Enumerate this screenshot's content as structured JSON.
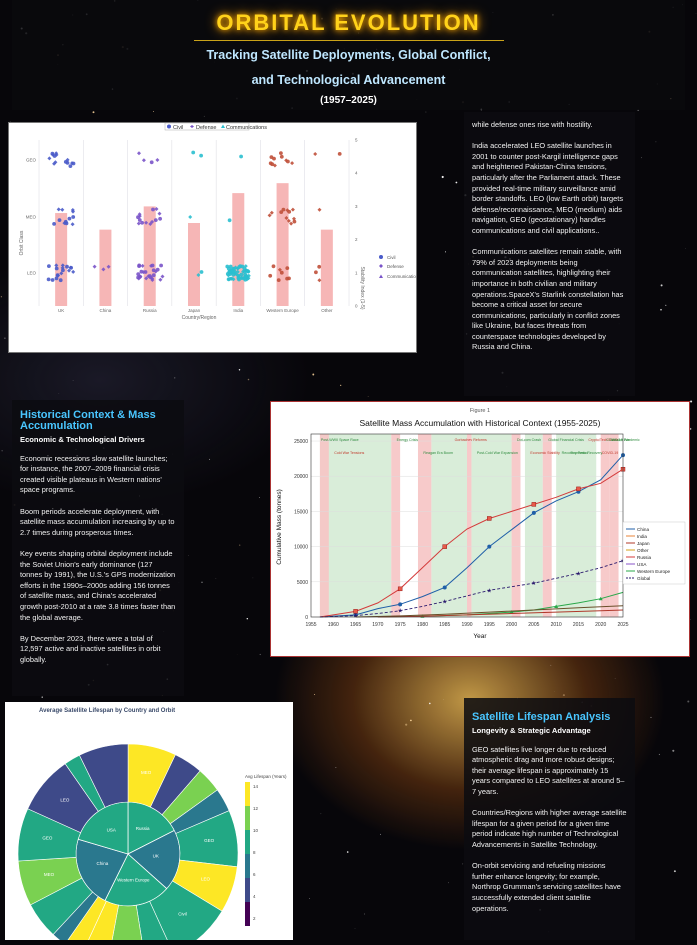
{
  "header": {
    "title": "ORBITAL EVOLUTION",
    "subtitle_line1": "Tracking Satellite Deployments, Global Conflict,",
    "subtitle_line2": "and Technological Advancement",
    "dates": "(1957–2025)"
  },
  "text_top": {
    "p0": "while defense ones rise with hostility.",
    "p1": "India accelerated LEO satellite launches in 2001 to counter post-Kargil intelligence gaps and heightened Pakistan-China tensions, particularly after the Parliament attack. These provided real-time military surveillance amid border standoffs. LEO (low Earth orbit) targets defense/reconnaissance, MEO (medium) aids navigation, GEO (geostationary) handles communications and civil applications..",
    "p2": "Communications satellites remain stable, with 79% of 2023 deployments being communication satellites, highlighting their importance in both civilian and military operations.SpaceX's Starlink constellation has become a critical asset for secure communications, particularly in conflict zones like Ukraine, but faces threats from counterspace technologies developed by Russia and China."
  },
  "text_history": {
    "title": "Historical Context & Mass Accumulation",
    "subtitle": "Economic & Technological Drivers",
    "p1": "Economic recessions slow satellite launches; for instance, the 2007–2009 financial crisis created visible plateaus in Western nations' space programs.",
    "p2": "Boom periods accelerate deployment, with satellite mass accumulation increasing by up to 2.7 times during prosperous times.",
    "p3": "Key events shaping orbital deployment include the Soviet Union's early dominance (127 tonnes by 1991), the U.S.'s GPS modernization efforts in the 1990s–2000s adding 156 tonnes of satellite mass, and China's accelerated growth post-2010 at a rate 3.8 times faster than the global average.",
    "p4": "By December 2023, there were a total of 12,597 active and inactive satellites in orbit globally."
  },
  "text_lifespan": {
    "title": "Satellite Lifespan Analysis",
    "subtitle": "Longevity & Strategic Advantage",
    "p1": "GEO satellites live longer due to reduced atmospheric drag and more robust designs; their average lifespan is approximately 15 years compared to LEO satellites at around 5–7 years.",
    "p2": "Countries/Regions with higher average satellite lifespan for a given period for a given time period indicate high number of Technological Advancements in Satellite Technology.",
    "p3": "On-orbit servicing and refueling missions further enhance longevity; for example, Northrop Grumman's servicing satellites have successfully extended client satellite operations."
  },
  "chart_data": [
    {
      "type": "scatter",
      "title": "",
      "legend": [
        "Civil",
        "Defense",
        "Communications"
      ],
      "legend_placement": "top-center",
      "categories": [
        "UK",
        "China",
        "Russia",
        "Japan",
        "India",
        "Western Europe",
        "Other"
      ],
      "y_categories": [
        "LEO",
        "MEO",
        "GEO"
      ],
      "xlabel": "Country/Region",
      "ylabel": "Orbit Class",
      "y2label": "Stability Index (1-5)",
      "y2lim": [
        0,
        5
      ],
      "y2_ticks": [
        "0",
        "1",
        "2",
        "3",
        "4",
        "5"
      ],
      "bars": [
        2.8,
        2.3,
        3.0,
        2.5,
        3.4,
        3.7,
        2.3
      ],
      "colors": {
        "civil": "#4a5bc9",
        "defense": "#7a54c9",
        "communications": "#2abfcf",
        "bar": "#f4a9a9"
      }
    },
    {
      "type": "line",
      "title": "Satellite Mass Accumulation with Historical Context (1955-2025)",
      "figure_label": "Figure 1",
      "xlabel": "Year",
      "ylabel": "Cumulative Mass (tonnes)",
      "x_ticks": [
        "1955",
        "1960",
        "1965",
        "1970",
        "1975",
        "1980",
        "1985",
        "1990",
        "1995",
        "2000",
        "2005",
        "2010",
        "2015",
        "2020",
        "2025"
      ],
      "y_ticks": [
        "0",
        "5000",
        "10000",
        "15000",
        "20000",
        "25000"
      ],
      "legend": [
        "China",
        "India",
        "Japan",
        "Other",
        "Russia",
        "USA",
        "Western Europe",
        "Global"
      ],
      "series": [
        {
          "name": "USA",
          "color": "#1f5fa8",
          "x": [
            1957,
            1965,
            1970,
            1975,
            1980,
            1985,
            1990,
            1995,
            2000,
            2005,
            2010,
            2015,
            2020,
            2025
          ],
          "values": [
            0,
            300,
            1200,
            1800,
            2900,
            4200,
            7000,
            10000,
            12400,
            14800,
            16500,
            17800,
            19500,
            23000
          ]
        },
        {
          "name": "Russia",
          "color": "#d43b3b",
          "x": [
            1957,
            1965,
            1970,
            1975,
            1980,
            1985,
            1990,
            1995,
            2000,
            2005,
            2010,
            2015,
            2020,
            2025
          ],
          "values": [
            0,
            800,
            2000,
            4000,
            7000,
            10000,
            12500,
            14000,
            15000,
            16000,
            17000,
            18200,
            19000,
            21000
          ]
        },
        {
          "name": "Global",
          "color": "#2b1a6e",
          "x": [
            1957,
            1965,
            1970,
            1975,
            1980,
            1985,
            1990,
            1995,
            2000,
            2005,
            2010,
            2015,
            2020,
            2025
          ],
          "values": [
            0,
            200,
            500,
            900,
            1500,
            2200,
            3000,
            3800,
            4300,
            4800,
            5500,
            6200,
            7000,
            8000
          ]
        },
        {
          "name": "China",
          "color": "#2aa84a",
          "x": [
            1970,
            1980,
            1990,
            2000,
            2005,
            2010,
            2015,
            2020,
            2025
          ],
          "values": [
            0,
            100,
            300,
            700,
            1000,
            1500,
            2000,
            2600,
            3500
          ]
        },
        {
          "name": "Japan",
          "color": "#b0382a",
          "x": [
            1970,
            1980,
            1990,
            2000,
            2010,
            2020,
            2025
          ],
          "values": [
            0,
            100,
            300,
            500,
            700,
            900,
            1000
          ]
        },
        {
          "name": "Western Europe",
          "color": "#6b4f2a",
          "x": [
            1965,
            1975,
            1985,
            1995,
            2005,
            2015,
            2025
          ],
          "values": [
            0,
            150,
            400,
            700,
            1000,
            1300,
            1600
          ]
        }
      ],
      "annotations": [
        "Post-WWII Space Race",
        "Cold War Tensions",
        "Energy Crisis",
        "Reagan Era Boom",
        "Gorbachev Reforms",
        "Post-Cold War Expansion",
        "Dot-com Crash",
        "Economic Stability",
        "Global Financial Crisis",
        "Recovery Period",
        "Crypto/Tech Boom",
        "Economic Recovery",
        "Ukraine War",
        "COVID-19",
        "COVID-19 Pandemic"
      ]
    },
    {
      "type": "pie",
      "title": "Average Satellite Lifespan by Country and Orbit",
      "subtype": "sunburst",
      "colorbar_label": "Avg Lifespan (Years)",
      "colorbar_ticks": [
        "2",
        "4",
        "6",
        "8",
        "10",
        "12",
        "14"
      ],
      "center_labels": [
        "Russia",
        "UK",
        "Western Europe",
        "China",
        "USA"
      ],
      "ring_labels": [
        "MEO",
        "GEO",
        "LEO",
        "Civil",
        "MEO",
        "GEO",
        "LEO"
      ]
    }
  ]
}
